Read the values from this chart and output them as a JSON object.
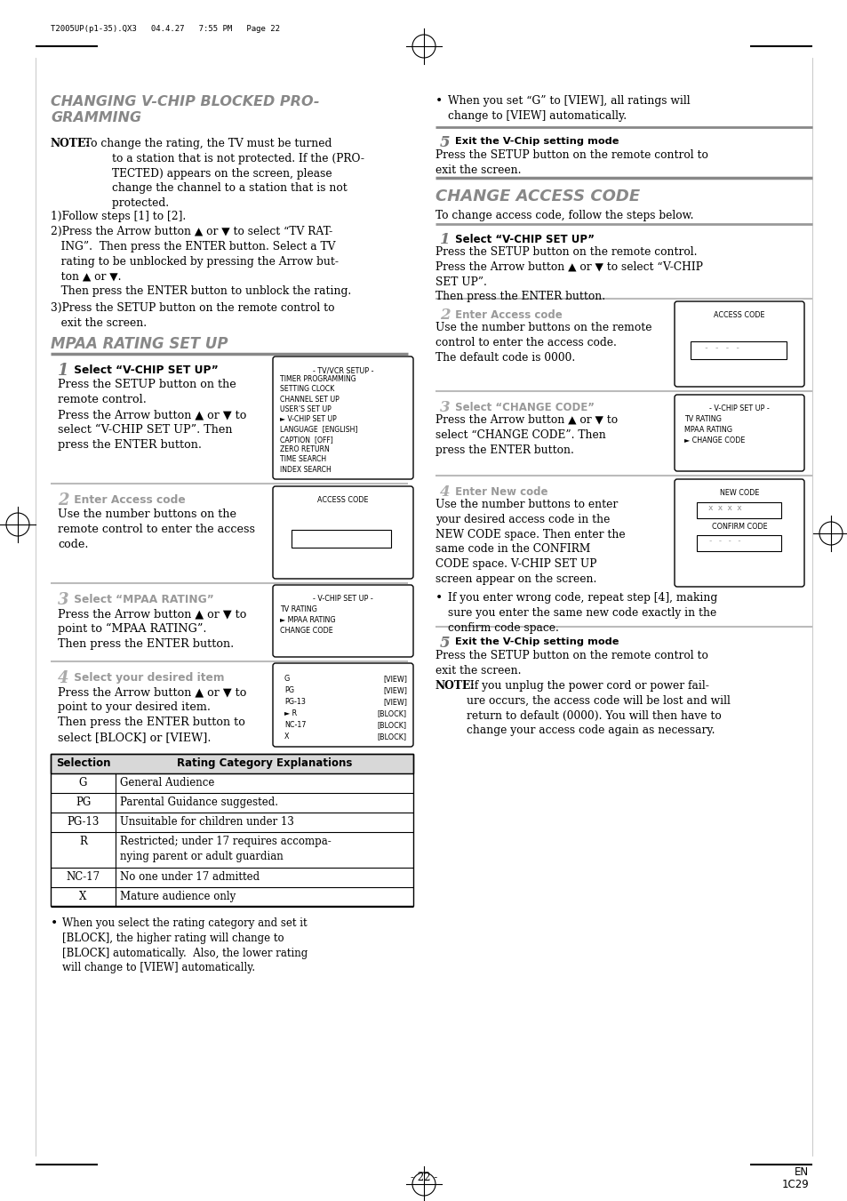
{
  "page_header": "T2005UP(p1-35).QX3   04.4.27   7:55 PM   Page 22",
  "bg_color": "#ffffff",
  "section1_title": "CHANGING V-CHIP BLOCKED PRO-\nGRAMMING",
  "section2_title": "MPAA RATING SET UP",
  "step1_box_lines": [
    "TIMER PROGRAMMING",
    "SETTING CLOCK",
    "CHANNEL SET UP",
    "USER’S SET UP",
    "► V-CHIP SET UP",
    "LANGUAGE  [ENGLISH]",
    "CAPTION  [OFF]",
    "ZERO RETURN",
    "TIME SEARCH",
    "INDEX SEARCH"
  ],
  "step3_box_lines_left": [
    "TV RATING",
    "► MPAA RATING",
    "CHANGE CODE"
  ],
  "step4_box_left": [
    "G",
    "PG",
    "PG-13",
    "► R",
    "NC-17",
    "X"
  ],
  "step4_box_right": [
    "[VIEW]",
    "[VIEW]",
    "[VIEW]",
    "[BLOCK]",
    "[BLOCK]",
    "[BLOCK]"
  ],
  "table_rows": [
    [
      "G",
      "General Audience"
    ],
    [
      "PG",
      "Parental Guidance suggested."
    ],
    [
      "PG-13",
      "Unsuitable for children under 13"
    ],
    [
      "R",
      "Restricted; under 17 requires accompa-\nnying parent or adult guardian"
    ],
    [
      "NC-17",
      "No one under 17 admitted"
    ],
    [
      "X",
      "Mature audience only"
    ]
  ],
  "r_step3_box_lines": [
    "TV RATING",
    "MPAA RATING",
    "► CHANGE CODE"
  ],
  "footer_left": "- 22 -",
  "footer_right_top": "EN",
  "footer_right_bot": "1C29"
}
